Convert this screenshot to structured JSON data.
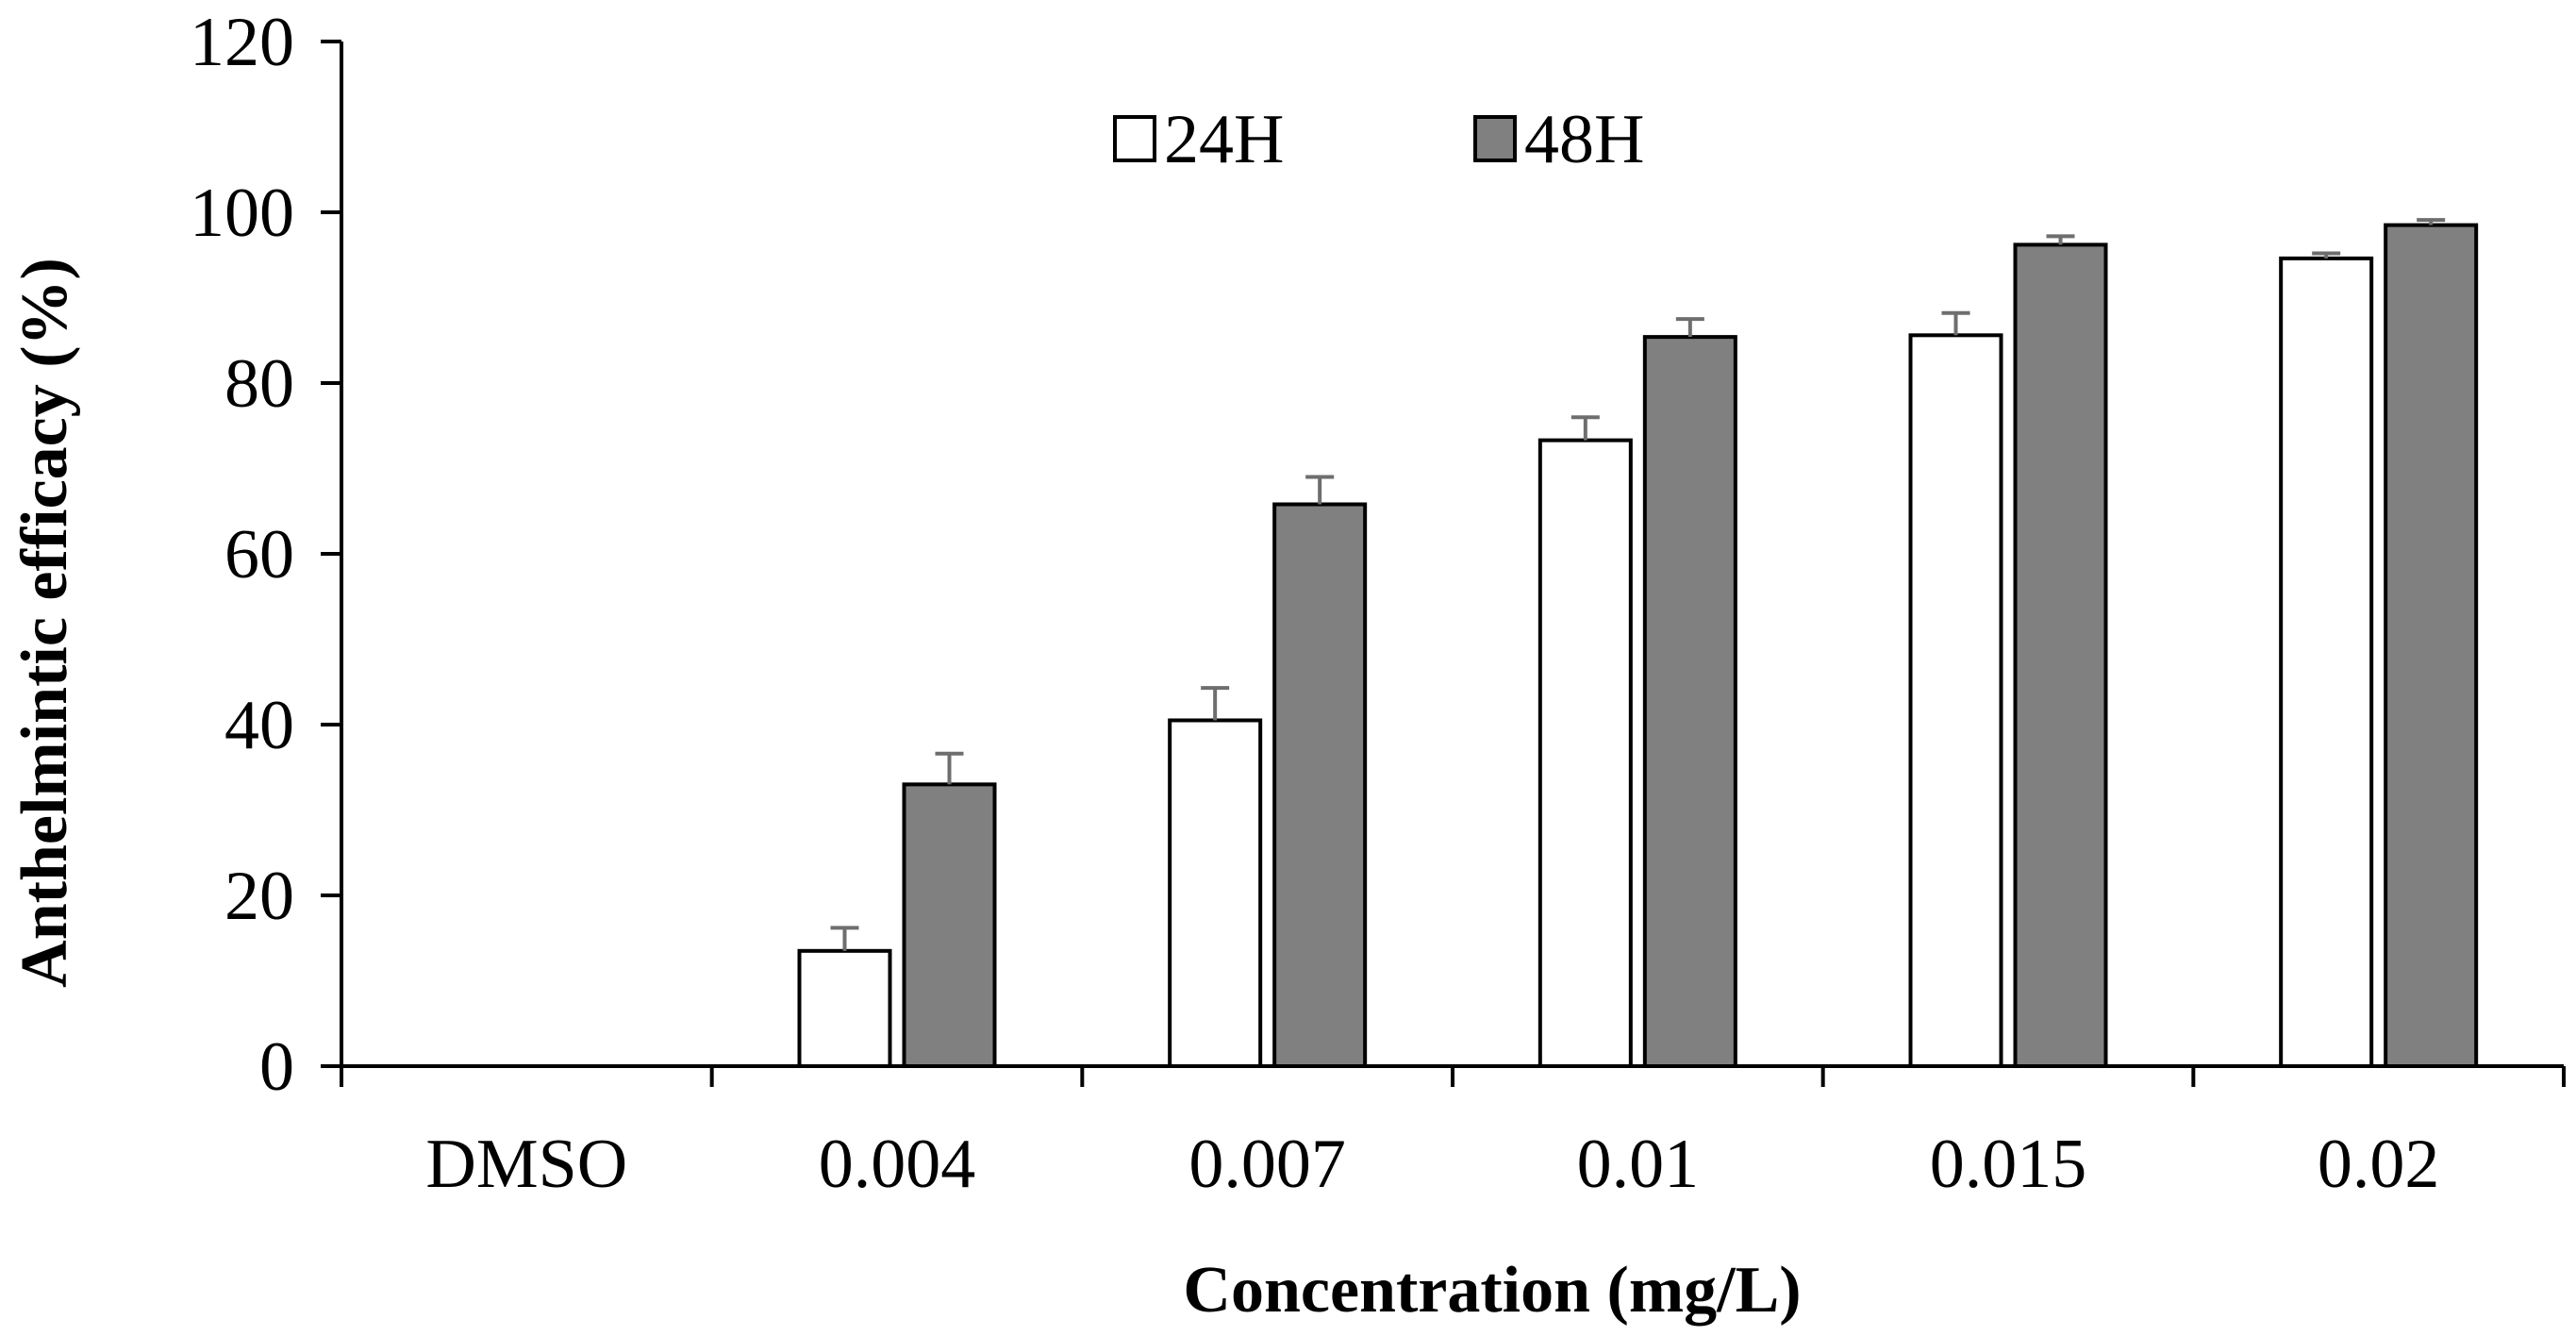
{
  "chart_data": {
    "type": "bar",
    "title": "",
    "xlabel": "Concentration (mg/L)",
    "ylabel": "Anthelmintic efficacy (%)",
    "ylim": [
      0,
      120
    ],
    "yticks": [
      "0",
      "20",
      "40",
      "60",
      "80",
      "100",
      "120"
    ],
    "categories": [
      "DMSO",
      "0.004",
      "0.007",
      "0.01",
      "0.015",
      "0.02"
    ],
    "legend_position": "top-center",
    "series": [
      {
        "name": "24H",
        "color": "#ffffff",
        "values": [
          0,
          13.5,
          40.5,
          73.3,
          85.6,
          94.6
        ],
        "errors": [
          0,
          2.7,
          3.8,
          2.7,
          2.6,
          0.6
        ]
      },
      {
        "name": "48H",
        "color": "#808080",
        "values": [
          0,
          33.0,
          65.8,
          85.4,
          96.2,
          98.5
        ],
        "errors": [
          0,
          3.6,
          3.2,
          2.1,
          1.0,
          0.6
        ]
      }
    ]
  }
}
